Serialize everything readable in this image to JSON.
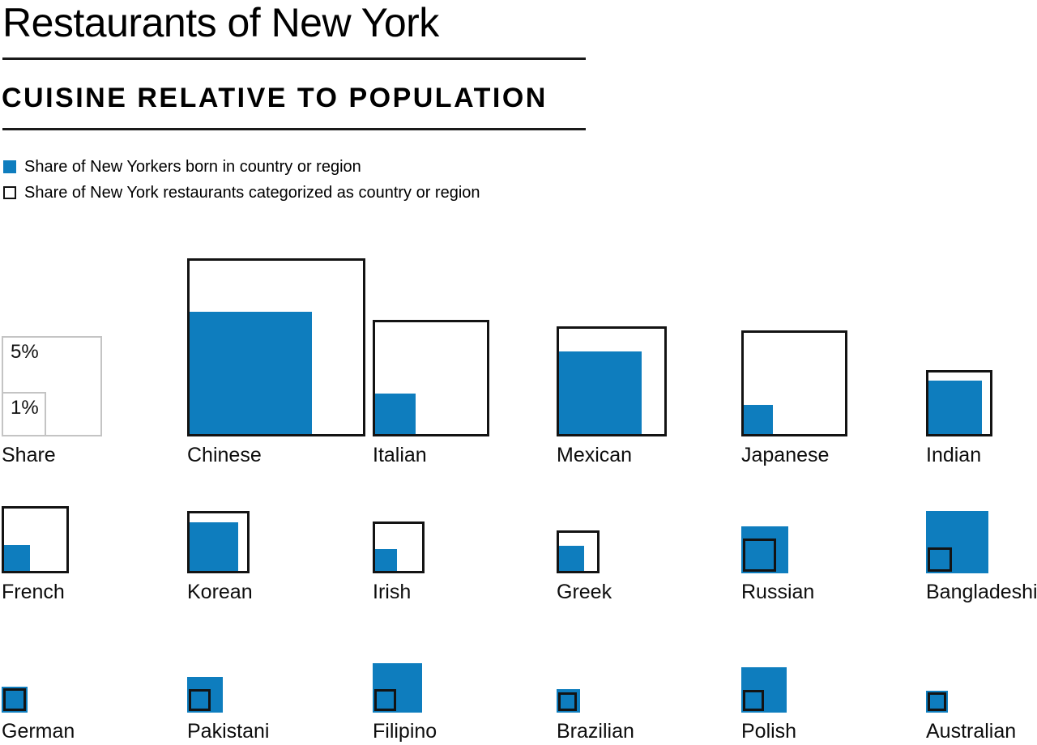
{
  "chart_data": {
    "type": "bar",
    "variant": "area-proportional-squares",
    "title": "Restaurants of New York",
    "subtitle": "CUISINE RELATIVE TO POPULATION",
    "unit": "percent",
    "legend_position": "top-left",
    "grid": false,
    "series": [
      {
        "name": "Share of New Yorkers born in country or region",
        "style": "filled-blue",
        "color": "#0e7dbe"
      },
      {
        "name": "Share of New York restaurants categorized as country or region",
        "style": "outlined-black",
        "color": "#131313"
      }
    ],
    "scale_reference": {
      "caption": "Share",
      "labels": [
        "5%",
        "1%"
      ],
      "values": [
        5,
        1
      ]
    },
    "categories": [
      "Chinese",
      "Italian",
      "Mexican",
      "Japanese",
      "Indian",
      "French",
      "Korean",
      "Irish",
      "Greek",
      "Russian",
      "Bangladeshi",
      "German",
      "Pakistani",
      "Filipino",
      "Brazilian",
      "Polish",
      "Australian"
    ],
    "cuisines": [
      {
        "label": "Chinese",
        "born": 7.7,
        "restaurants": 15.7
      },
      {
        "label": "Italian",
        "born": 0.9,
        "restaurants": 6.7
      },
      {
        "label": "Mexican",
        "born": 3.6,
        "restaurants": 6.0
      },
      {
        "label": "Japanese",
        "born": 0.5,
        "restaurants": 5.6
      },
      {
        "label": "Indian",
        "born": 1.55,
        "restaurants": 2.2
      },
      {
        "label": "French",
        "born": 0.4,
        "restaurants": 2.25
      },
      {
        "label": "Korean",
        "born": 1.3,
        "restaurants": 1.93
      },
      {
        "label": "Irish",
        "born": 0.3,
        "restaurants": 1.33
      },
      {
        "label": "Greek",
        "born": 0.38,
        "restaurants": 0.91
      },
      {
        "label": "Russian",
        "born": 1.08,
        "restaurants": 0.55
      },
      {
        "label": "Bangladeshi",
        "born": 1.93,
        "restaurants": 0.3
      },
      {
        "label": "German",
        "born": 0.33,
        "restaurants": 0.25
      },
      {
        "label": "Pakistani",
        "born": 0.63,
        "restaurants": 0.24
      },
      {
        "label": "Filipino",
        "born": 1.21,
        "restaurants": 0.23
      },
      {
        "label": "Brazilian",
        "born": 0.27,
        "restaurants": 0.17
      },
      {
        "label": "Polish",
        "born": 1.02,
        "restaurants": 0.22
      },
      {
        "label": "Australian",
        "born": 0.24,
        "restaurants": 0.17
      }
    ],
    "rows": [
      [
        "Chinese",
        "Italian",
        "Mexican",
        "Japanese",
        "Indian"
      ],
      [
        "French",
        "Korean",
        "Irish",
        "Greek",
        "Russian",
        "Bangladeshi"
      ],
      [
        "German",
        "Pakistani",
        "Filipino",
        "Brazilian",
        "Polish",
        "Australian"
      ]
    ]
  }
}
